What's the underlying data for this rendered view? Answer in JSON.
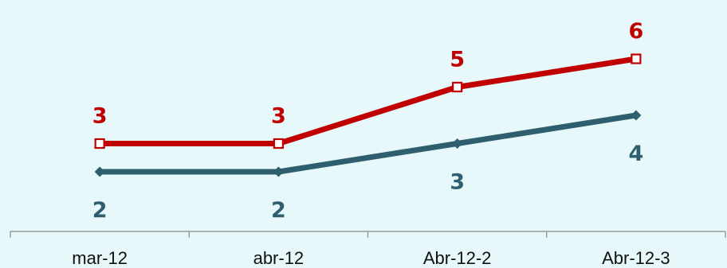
{
  "chart_data": {
    "type": "line",
    "categories": [
      "mar-12",
      "abr-12",
      "Abr-12-2",
      "Abr-12-3"
    ],
    "series": [
      {
        "values": [
          3,
          3,
          5,
          6
        ],
        "color": "#c00000",
        "marker": "square",
        "labels": [
          "3",
          "3",
          "5",
          "6"
        ],
        "label_position": "above"
      },
      {
        "values": [
          2,
          2,
          3,
          4
        ],
        "color": "#2f5f6e",
        "marker": "diamond",
        "labels": [
          "2",
          "2",
          "3",
          "4"
        ],
        "label_position": "below"
      }
    ],
    "title": "",
    "xlabel": "",
    "ylabel": "",
    "y_axis_visible": false,
    "grid": false,
    "legend": "none"
  },
  "colors": {
    "background": "#e6f8fa",
    "axis": "#8c8c8c"
  }
}
